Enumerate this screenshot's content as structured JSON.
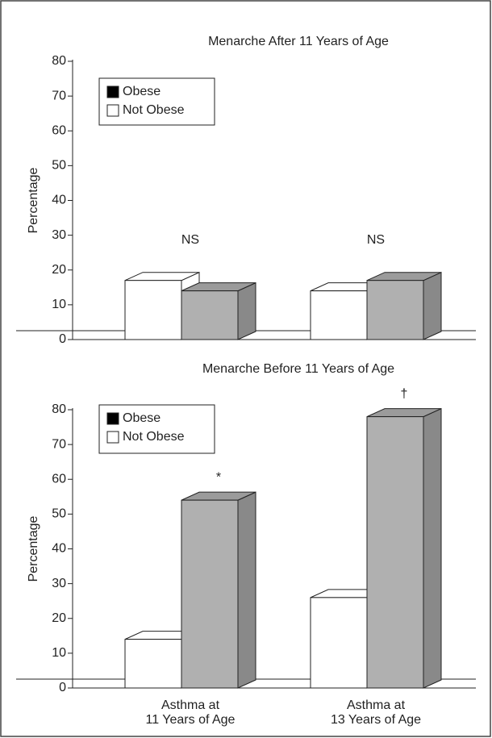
{
  "chart_data": [
    {
      "type": "bar",
      "title": "Menarche After 11 Years of Age",
      "ylabel": "Percentage",
      "categories": [
        null,
        null
      ],
      "series": [
        {
          "name": "Obese",
          "color": "#b0b0b0",
          "values": [
            14,
            17
          ]
        },
        {
          "name": "Not Obese",
          "color": "#ffffff",
          "values": [
            17,
            14
          ]
        }
      ],
      "ylim": [
        0,
        80
      ],
      "yticks": [
        0,
        10,
        20,
        30,
        40,
        50,
        60,
        70,
        80
      ],
      "annotations": [
        "NS",
        "NS"
      ]
    },
    {
      "type": "bar",
      "title": "Menarche Before 11 Years of Age",
      "ylabel": "Percentage",
      "categories": [
        "Asthma at\n11 Years of Age",
        "Asthma at\n13 Years of Age"
      ],
      "series": [
        {
          "name": "Obese",
          "color": "#b0b0b0",
          "values": [
            54,
            78
          ]
        },
        {
          "name": "Not Obese",
          "color": "#ffffff",
          "values": [
            14,
            26
          ]
        }
      ],
      "ylim": [
        0,
        80
      ],
      "yticks": [
        0,
        10,
        20,
        30,
        40,
        50,
        60,
        70,
        80
      ],
      "annotations": [
        "*",
        "†"
      ]
    }
  ]
}
